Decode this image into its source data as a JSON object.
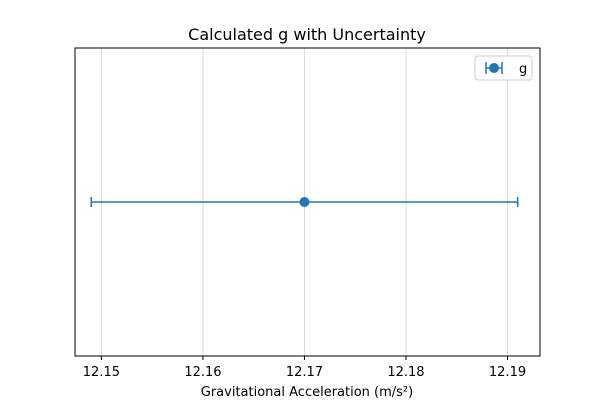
{
  "chart_data": {
    "type": "scatter",
    "title": "Calculated g with Uncertainty",
    "xlabel": "Gravitational Acceleration (m/s²)",
    "ylabel": "",
    "xlim": [
      12.1474,
      12.1932
    ],
    "x_ticks": [
      "12.15",
      "12.16",
      "12.17",
      "12.18",
      "12.19"
    ],
    "x_tick_values": [
      12.15,
      12.16,
      12.17,
      12.18,
      12.19
    ],
    "grid": {
      "x": true,
      "y": false
    },
    "legend": {
      "position": "upper right",
      "label": "g"
    },
    "series": [
      {
        "name": "g",
        "x": [
          12.17
        ],
        "y": [
          0
        ],
        "xerr": [
          0.021
        ],
        "color": "#1f77b4"
      }
    ]
  }
}
